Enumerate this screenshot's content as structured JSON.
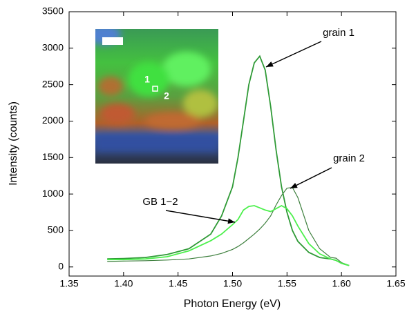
{
  "chart_data": {
    "type": "line",
    "x_label": "Photon Energy (eV)",
    "y_label": "Intensity (counts)",
    "xlim": [
      1.35,
      1.65
    ],
    "ylim": [
      -125,
      3500
    ],
    "xticks": [
      1.35,
      {
        "value": 1.4,
        "label": "1.40"
      },
      1.45,
      {
        "value": 1.5,
        "label": "1.50"
      },
      1.55,
      {
        "value": 1.6,
        "label": "1.60"
      },
      1.65
    ],
    "yticks": [
      0,
      500,
      1000,
      1500,
      2000,
      2500,
      3000,
      3500
    ],
    "x": [
      1.385,
      1.4,
      1.42,
      1.44,
      1.46,
      1.48,
      1.49,
      1.5,
      1.505,
      1.51,
      1.515,
      1.52,
      1.525,
      1.53,
      1.535,
      1.54,
      1.545,
      1.55,
      1.555,
      1.56,
      1.57,
      1.58,
      1.59,
      1.595,
      1.6,
      1.607
    ],
    "series": [
      {
        "name": "grain 1",
        "color": "#2f9a36",
        "values": [
          110,
          115,
          130,
          170,
          250,
          450,
          700,
          1100,
          1500,
          2000,
          2500,
          2800,
          2890,
          2700,
          2200,
          1600,
          1100,
          750,
          500,
          350,
          200,
          130,
          110,
          90,
          50,
          20
        ]
      },
      {
        "name": "grain 2",
        "color": "#3d7f3d",
        "values": [
          75,
          80,
          85,
          95,
          110,
          150,
          185,
          240,
          280,
          330,
          390,
          450,
          520,
          600,
          700,
          850,
          980,
          1080,
          1090,
          950,
          500,
          250,
          130,
          120,
          60,
          20
        ]
      },
      {
        "name": "GB 1−2",
        "color": "#4cf04c",
        "values": [
          100,
          100,
          110,
          140,
          220,
          360,
          450,
          580,
          650,
          780,
          830,
          840,
          810,
          780,
          760,
          800,
          840,
          800,
          700,
          560,
          320,
          180,
          110,
          90,
          50,
          20
        ]
      }
    ],
    "inset_labels": [
      "1",
      "2"
    ]
  }
}
